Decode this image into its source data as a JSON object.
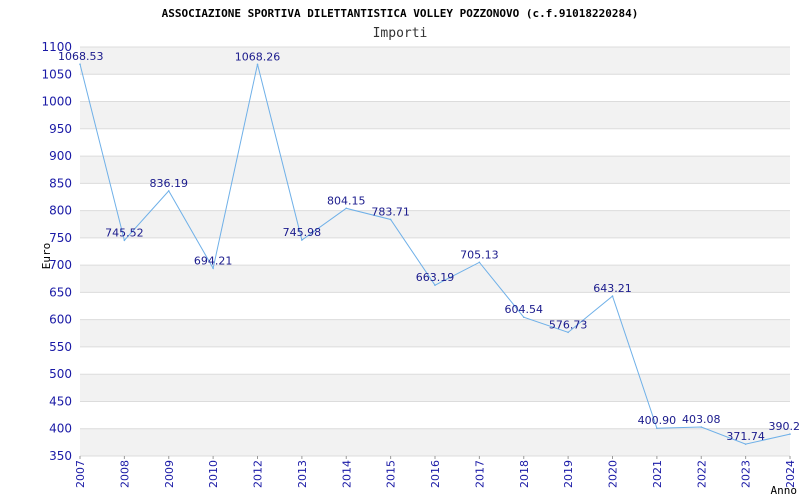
{
  "chart_data": {
    "type": "line",
    "title": "ASSOCIAZIONE SPORTIVA DILETTANTISTICA VOLLEY POZZONOVO (c.f.91018220284)",
    "subtitle": "Importi",
    "xlabel": "Anno",
    "ylabel": "Euro",
    "ylim": [
      350,
      1100
    ],
    "yticks": [
      350,
      400,
      450,
      500,
      550,
      600,
      650,
      700,
      750,
      800,
      850,
      900,
      950,
      1000,
      1050,
      1100
    ],
    "grid": true,
    "categories": [
      "2007",
      "2008",
      "2009",
      "2010",
      "2012",
      "2013",
      "2014",
      "2015",
      "2016",
      "2017",
      "2018",
      "2019",
      "2020",
      "2021",
      "2022",
      "2023",
      "2024"
    ],
    "series": [
      {
        "values": [
          1068.53,
          745.52,
          836.19,
          694.21,
          1068.26,
          745.98,
          804.15,
          783.71,
          663.19,
          705.13,
          604.54,
          576.73,
          643.21,
          400.9,
          403.08,
          371.74,
          390.2
        ],
        "labels": [
          "1068.53",
          "745.52",
          "836.19",
          "694.21",
          "1068.26",
          "745.98",
          "804.15",
          "783.71",
          "663.19",
          "705.13",
          "604.54",
          "576.73",
          "643.21",
          "400.90",
          "403.08",
          "371.74",
          "390.2"
        ]
      }
    ],
    "colors": {
      "line": "#6fb0e8",
      "band": "#f2f2f2",
      "gridline": "#dcdcdc",
      "tick_text": "#1a1aa6",
      "label_text": "#1a1a8c"
    }
  }
}
